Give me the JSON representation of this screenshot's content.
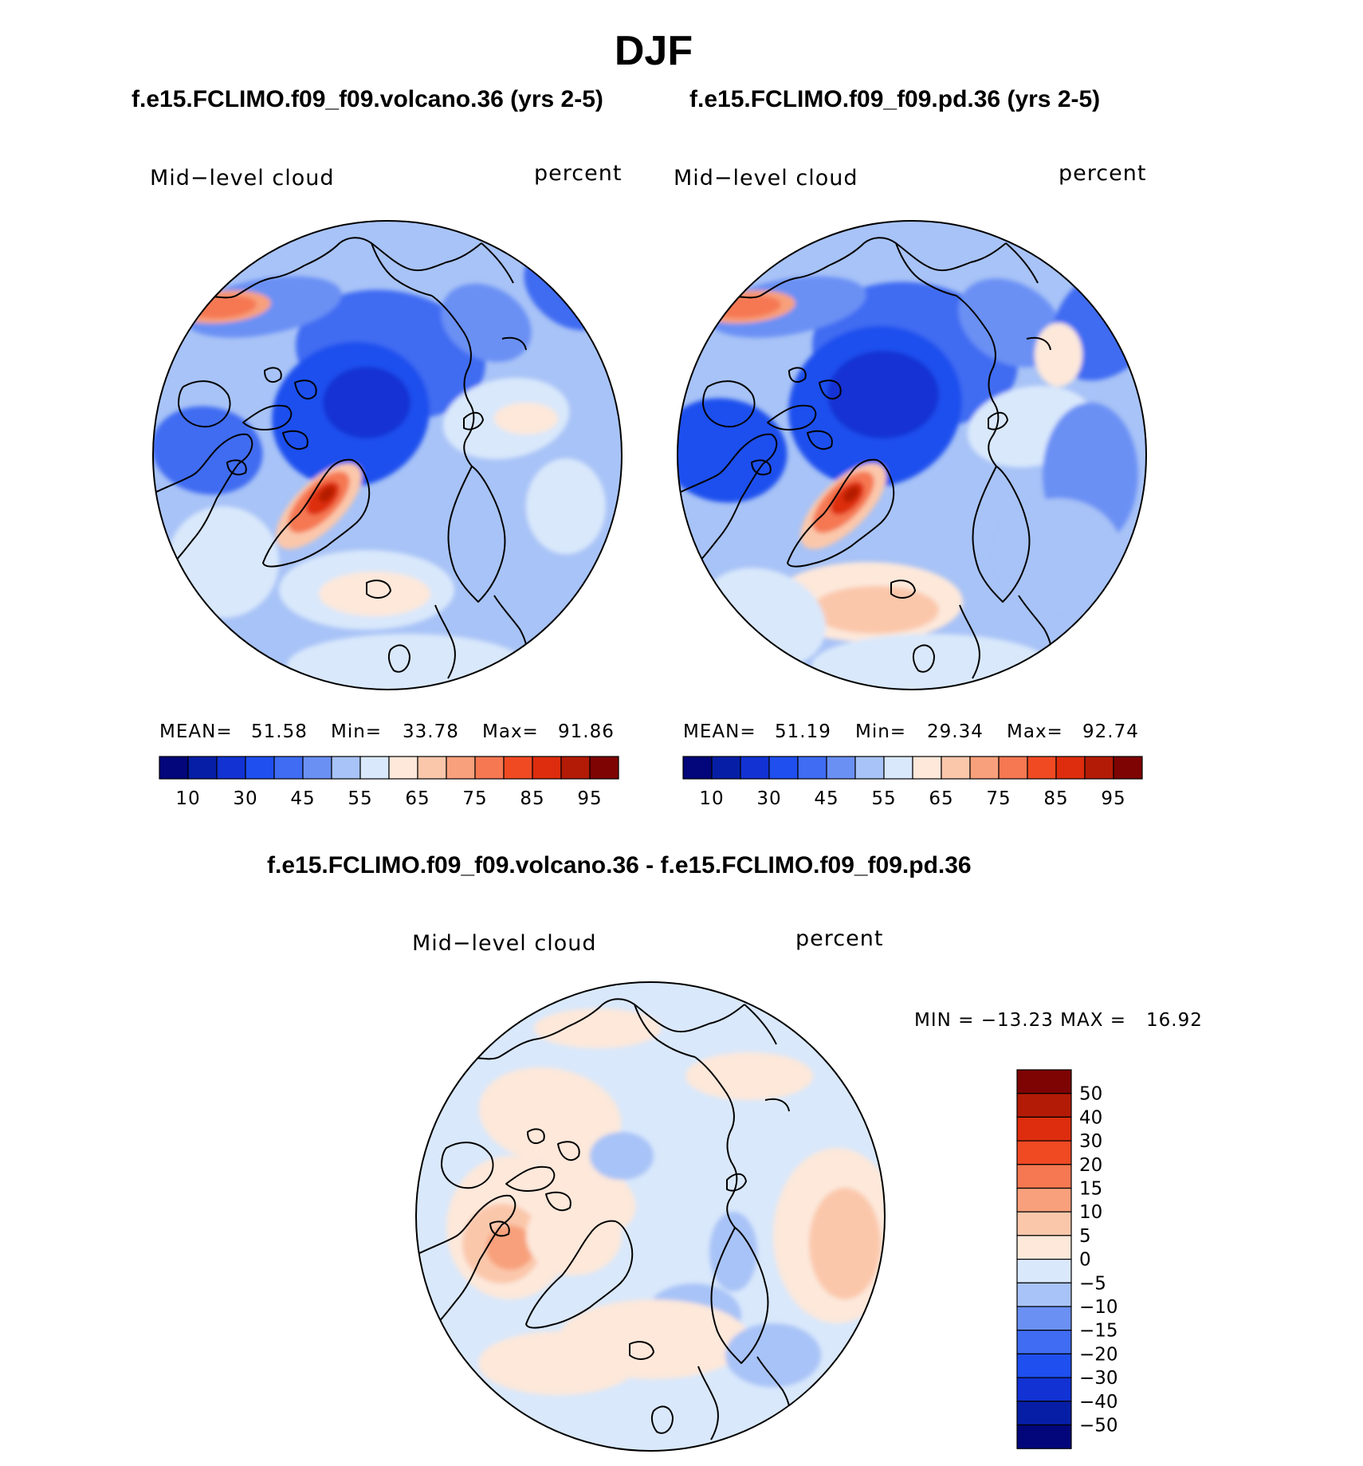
{
  "page": {
    "title": "DJF"
  },
  "chart_data": [
    {
      "type": "heatmap",
      "projection": "north polar stereographic",
      "run_title": "f.e15.FCLIMO.f09_f09.volcano.36 (yrs 2-5)",
      "variable": "Mid−level cloud",
      "units": "percent",
      "stats": {
        "mean_label": "MEAN=",
        "mean": "51.58",
        "min_label": "Min=",
        "min": "33.78",
        "max_label": "Max=",
        "max": "91.86"
      },
      "colorbar": {
        "ticks": [
          "10",
          "30",
          "45",
          "55",
          "65",
          "75",
          "85",
          "95"
        ],
        "colors": [
          "#02067a",
          "#061ea6",
          "#1232d4",
          "#1f4fee",
          "#3f6cf2",
          "#6b90f4",
          "#a8c3f7",
          "#d9e8fb",
          "#fde8da",
          "#fbc7ab",
          "#f8a07c",
          "#f57852",
          "#f04a23",
          "#dd2d0e",
          "#b31b06",
          "#7e0403"
        ]
      }
    },
    {
      "type": "heatmap",
      "projection": "north polar stereographic",
      "run_title": "f.e15.FCLIMO.f09_f09.pd.36 (yrs 2-5)",
      "variable": "Mid−level cloud",
      "units": "percent",
      "stats": {
        "mean_label": "MEAN=",
        "mean": "51.19",
        "min_label": "Min=",
        "min": "29.34",
        "max_label": "Max=",
        "max": "92.74"
      },
      "colorbar": {
        "ticks": [
          "10",
          "30",
          "45",
          "55",
          "65",
          "75",
          "85",
          "95"
        ],
        "colors": [
          "#02067a",
          "#061ea6",
          "#1232d4",
          "#1f4fee",
          "#3f6cf2",
          "#6b90f4",
          "#a8c3f7",
          "#d9e8fb",
          "#fde8da",
          "#fbc7ab",
          "#f8a07c",
          "#f57852",
          "#f04a23",
          "#dd2d0e",
          "#b31b06",
          "#7e0403"
        ]
      }
    },
    {
      "type": "heatmap",
      "projection": "north polar stereographic",
      "run_title": "f.e15.FCLIMO.f09_f09.volcano.36 - f.e15.FCLIMO.f09_f09.pd.36",
      "variable": "Mid−level cloud",
      "units": "percent",
      "stats": {
        "text": "MIN = −13.23 MAX =   16.92"
      },
      "colorbar": {
        "ticks": [
          "50",
          "40",
          "30",
          "20",
          "15",
          "10",
          "5",
          "0",
          "−5",
          "−10",
          "−15",
          "−20",
          "−30",
          "−40",
          "−50"
        ],
        "colors": [
          "#7e0403",
          "#b31b06",
          "#dd2d0e",
          "#f04a23",
          "#f57852",
          "#f8a07c",
          "#fbc7ab",
          "#fde8da",
          "#d9e8fb",
          "#a8c3f7",
          "#6b90f4",
          "#3f6cf2",
          "#1f4fee",
          "#1232d4",
          "#061ea6",
          "#02067a"
        ]
      }
    }
  ]
}
